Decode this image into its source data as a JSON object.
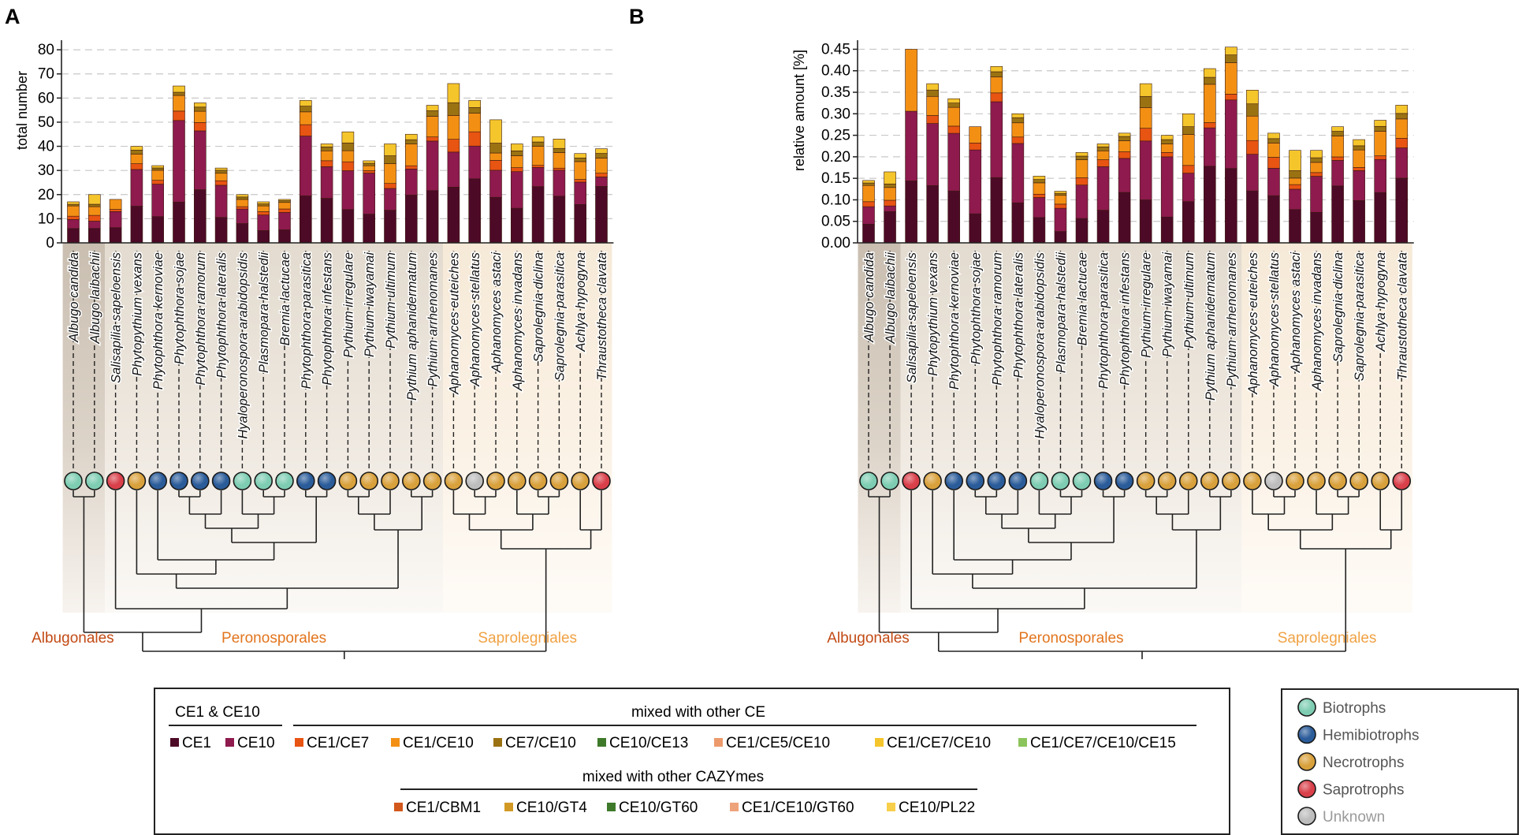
{
  "species": [
    "Albugo candida",
    "Albugo laibachii",
    "Salisapilia sapeloensis",
    "Phytopythium vexans",
    "Phytophthora kernoviae",
    "Phytophthora sojae",
    "Phytophthora ramorum",
    "Phytophthora lateralis",
    "Hyaloperonospora arabidopsidis",
    "Plasmopara halstedii",
    "Bremia lactucae",
    "Phytophthora parasitica",
    "Phytophthora infestans",
    "Pythium irregulare",
    "Pythium iwayamai",
    "Pythium ultimum",
    "Pythium aphanidermatum",
    "Pythium arrhenomanes",
    "Aphanomyces euteiches",
    "Aphanomyces stellatus",
    "Aphanomyces astaci",
    "Aphanomyces invadans",
    "Saprolegnia diclina",
    "Saprolegnia parasitica",
    "Achlya hypogyna",
    "Thraustotheca clavata"
  ],
  "lifestyles": [
    "Biotrophs",
    "Biotrophs",
    "Saprotrophs",
    "Necrotrophs",
    "Hemibiotrophs",
    "Hemibiotrophs",
    "Hemibiotrophs",
    "Hemibiotrophs",
    "Biotrophs",
    "Biotrophs",
    "Biotrophs",
    "Hemibiotrophs",
    "Hemibiotrophs",
    "Necrotrophs",
    "Necrotrophs",
    "Necrotrophs",
    "Necrotrophs",
    "Necrotrophs",
    "Necrotrophs",
    "Unknown",
    "Necrotrophs",
    "Necrotrophs",
    "Necrotrophs",
    "Necrotrophs",
    "Necrotrophs",
    "Saprotrophs"
  ],
  "lifestyle_colors": {
    "Biotrophs": "#7ecdb3",
    "Hemibiotrophs": "#2b5c9a",
    "Necrotrophs": "#d9a13c",
    "Saprotrophs": "#d9404a",
    "Unknown": "#bdbdbd"
  },
  "segment_colors": [
    "#4d0a26",
    "#8e1a4e",
    "#e85412",
    "#f39014",
    "#9a7212",
    "#f5c52c"
  ],
  "orders": [
    {
      "name": "Albugonales",
      "color": "#c24a14"
    },
    {
      "name": "Peronosporales",
      "color": "#e2751e"
    },
    {
      "name": "Saprolegniales",
      "color": "#f0a244"
    }
  ],
  "chart_data": [
    {
      "type": "bar",
      "panel": "A",
      "ylabel": "total number",
      "ylim": [
        0,
        82
      ],
      "yticks": [
        0,
        10,
        20,
        30,
        40,
        50,
        60,
        70,
        80
      ],
      "stacked": true,
      "series_order": [
        "CE1",
        "CE10",
        "CE1/CE7",
        "CE1/CE10",
        "CE7/CE10",
        "CE1/CE7/CE10"
      ],
      "totals": [
        17,
        20,
        18,
        40,
        32,
        65,
        58,
        31,
        20,
        17,
        18,
        59,
        41,
        46,
        34,
        41,
        45,
        57,
        66,
        59,
        51,
        41,
        44,
        43,
        37,
        39
      ],
      "fractions": [
        [
          0.35,
          0.22,
          0.08,
          0.25,
          0.04,
          0.06
        ],
        [
          0.3,
          0.15,
          0.12,
          0.18,
          0.05,
          0.2
        ],
        [
          0.35,
          0.37,
          0.05,
          0.23,
          0,
          0
        ],
        [
          0.38,
          0.38,
          0.06,
          0.1,
          0.04,
          0.04
        ],
        [
          0.34,
          0.42,
          0.05,
          0.13,
          0.03,
          0.03
        ],
        [
          0.26,
          0.52,
          0.06,
          0.1,
          0.02,
          0.04
        ],
        [
          0.38,
          0.42,
          0.06,
          0.08,
          0.03,
          0.03
        ],
        [
          0.34,
          0.43,
          0.06,
          0.1,
          0.04,
          0.03
        ],
        [
          0.4,
          0.3,
          0.05,
          0.15,
          0.05,
          0.05
        ],
        [
          0.3,
          0.38,
          0.08,
          0.14,
          0.05,
          0.05
        ],
        [
          0.3,
          0.4,
          0.08,
          0.15,
          0.04,
          0.03
        ],
        [
          0.33,
          0.42,
          0.08,
          0.09,
          0.04,
          0.04
        ],
        [
          0.45,
          0.32,
          0.06,
          0.1,
          0.04,
          0.03
        ],
        [
          0.3,
          0.35,
          0.08,
          0.1,
          0.07,
          0.1
        ],
        [
          0.35,
          0.5,
          0.03,
          0.06,
          0.03,
          0.03
        ],
        [
          0.33,
          0.22,
          0.05,
          0.2,
          0.08,
          0.12
        ],
        [
          0.44,
          0.24,
          0.03,
          0.2,
          0.04,
          0.05
        ],
        [
          0.38,
          0.36,
          0.03,
          0.15,
          0.04,
          0.04
        ],
        [
          0.35,
          0.22,
          0.08,
          0.15,
          0.08,
          0.12
        ],
        [
          0.45,
          0.23,
          0.1,
          0.13,
          0.04,
          0.05
        ],
        [
          0.37,
          0.22,
          0.08,
          0.06,
          0.08,
          0.19
        ],
        [
          0.35,
          0.37,
          0.04,
          0.12,
          0.05,
          0.07
        ],
        [
          0.53,
          0.18,
          0.02,
          0.18,
          0.04,
          0.05
        ],
        [
          0.45,
          0.25,
          0.02,
          0.15,
          0.04,
          0.09
        ],
        [
          0.43,
          0.25,
          0.03,
          0.2,
          0.04,
          0.05
        ],
        [
          0.6,
          0.1,
          0.04,
          0.16,
          0.05,
          0.05
        ]
      ]
    },
    {
      "type": "bar",
      "panel": "B",
      "ylabel": "relative amount [%]",
      "ylim": [
        0,
        0.46
      ],
      "yticks": [
        0,
        0.05,
        0.1,
        0.15,
        0.2,
        0.25,
        0.3,
        0.35,
        0.4,
        0.45
      ],
      "stacked": true,
      "series_order": [
        "CE1",
        "CE10",
        "CE1/CE7",
        "CE1/CE10",
        "CE7/CE10",
        "CE1/CE7/CE10"
      ],
      "totals": [
        0.145,
        0.165,
        0.45,
        0.37,
        0.335,
        0.27,
        0.41,
        0.3,
        0.155,
        0.12,
        0.21,
        0.23,
        0.255,
        0.37,
        0.25,
        0.3,
        0.405,
        0.455,
        0.355,
        0.255,
        0.215,
        0.215,
        0.27,
        0.24,
        0.285,
        0.32
      ],
      "fractions": [
        [
          0.3,
          0.28,
          0.08,
          0.26,
          0.04,
          0.04
        ],
        [
          0.44,
          0.08,
          0.08,
          0.18,
          0.05,
          0.17
        ],
        [
          0.32,
          0.36,
          0,
          0.32,
          0,
          0
        ],
        [
          0.36,
          0.39,
          0.05,
          0.12,
          0.04,
          0.04
        ],
        [
          0.36,
          0.4,
          0.05,
          0.13,
          0.03,
          0.03
        ],
        [
          0.25,
          0.55,
          0.06,
          0.14,
          0,
          0
        ],
        [
          0.37,
          0.43,
          0.05,
          0.09,
          0.03,
          0.03
        ],
        [
          0.31,
          0.46,
          0.05,
          0.11,
          0.04,
          0.03
        ],
        [
          0.38,
          0.3,
          0.05,
          0.17,
          0.05,
          0.05
        ],
        [
          0.22,
          0.45,
          0.08,
          0.17,
          0.04,
          0.04
        ],
        [
          0.27,
          0.37,
          0.08,
          0.2,
          0.04,
          0.04
        ],
        [
          0.33,
          0.44,
          0.07,
          0.09,
          0.04,
          0.03
        ],
        [
          0.46,
          0.31,
          0.06,
          0.1,
          0.04,
          0.03
        ],
        [
          0.27,
          0.37,
          0.08,
          0.13,
          0.07,
          0.08
        ],
        [
          0.24,
          0.56,
          0.04,
          0.08,
          0.04,
          0.04
        ],
        [
          0.32,
          0.22,
          0.06,
          0.24,
          0.06,
          0.1
        ],
        [
          0.44,
          0.22,
          0.03,
          0.22,
          0.04,
          0.05
        ],
        [
          0.38,
          0.35,
          0.03,
          0.16,
          0.04,
          0.04
        ],
        [
          0.34,
          0.24,
          0.09,
          0.16,
          0.08,
          0.09
        ],
        [
          0.43,
          0.25,
          0.1,
          0.13,
          0.04,
          0.05
        ],
        [
          0.36,
          0.22,
          0.05,
          0.07,
          0.08,
          0.22
        ],
        [
          0.33,
          0.39,
          0.04,
          0.11,
          0.05,
          0.08
        ],
        [
          0.49,
          0.22,
          0.03,
          0.18,
          0.04,
          0.04
        ],
        [
          0.41,
          0.29,
          0.03,
          0.17,
          0.04,
          0.06
        ],
        [
          0.41,
          0.27,
          0.03,
          0.2,
          0.04,
          0.05
        ],
        [
          0.47,
          0.22,
          0.07,
          0.14,
          0.04,
          0.06
        ]
      ]
    }
  ],
  "legend": {
    "ce_header": "CE1 & CE10",
    "mixed_ce_header": "mixed with other CE",
    "mixed_cazy_header": "mixed with other CAZYmes",
    "row1": [
      {
        "label": "CE1",
        "color": "#4d0a26"
      },
      {
        "label": "CE10",
        "color": "#8e1a4e"
      },
      {
        "label": "CE1/CE7",
        "color": "#e85412"
      },
      {
        "label": "CE1/CE10",
        "color": "#f39014"
      },
      {
        "label": "CE7/CE10",
        "color": "#9a7212"
      },
      {
        "label": "CE10/CE13",
        "color": "#3e7a2a"
      },
      {
        "label": "CE1/CE5/CE10",
        "color": "#ec9a6c"
      },
      {
        "label": "CE1/CE7/CE10",
        "color": "#f5c52c"
      },
      {
        "label": "CE1/CE7/CE10/CE15",
        "color": "#8cc45c"
      }
    ],
    "row2": [
      {
        "label": "CE1/CBM1",
        "color": "#d2581c"
      },
      {
        "label": "CE10/GT4",
        "color": "#d29a24"
      },
      {
        "label": "CE10/GT60",
        "color": "#3e7a2a"
      },
      {
        "label": "CE1/CE10/GT60",
        "color": "#eea37a"
      },
      {
        "label": "CE10/PL22",
        "color": "#f7cf4a"
      }
    ],
    "lifestyle_items": [
      {
        "label": "Biotrophs",
        "color": "#7ecdb3",
        "text_color": "#555555"
      },
      {
        "label": "Hemibiotrophs",
        "color": "#2b5c9a",
        "text_color": "#555555"
      },
      {
        "label": "Necrotrophs",
        "color": "#d9a13c",
        "text_color": "#555555"
      },
      {
        "label": "Saprotrophs",
        "color": "#d9404a",
        "text_color": "#555555"
      },
      {
        "label": "Unknown",
        "color": "#bdbdbd",
        "text_color": "#9a9a9a"
      }
    ]
  }
}
